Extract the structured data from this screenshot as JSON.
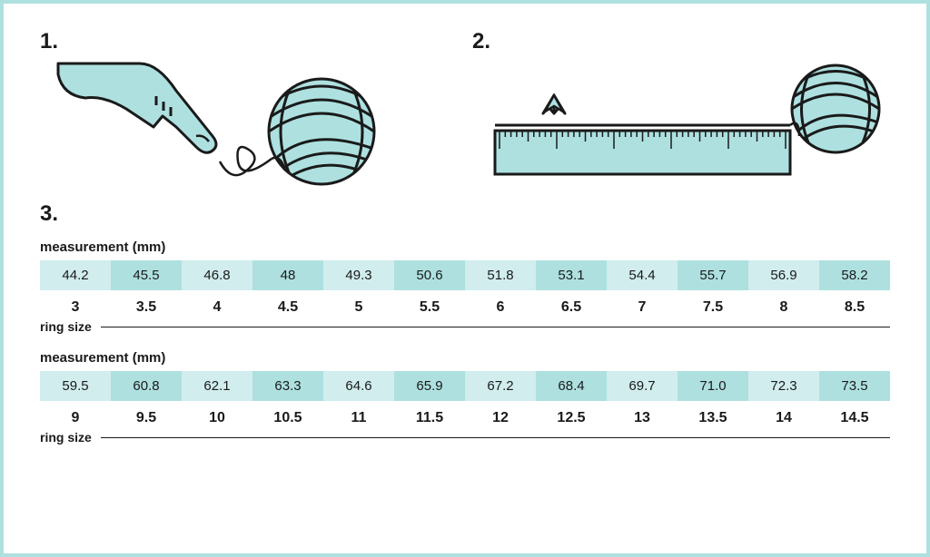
{
  "steps": {
    "s1": "1.",
    "s2": "2.",
    "s3": "3."
  },
  "labels": {
    "measurement": "measurement (mm)",
    "ringsize": "ring size"
  },
  "colors": {
    "border": "#aee0e0",
    "fill_light": "#d1edee",
    "fill_dark": "#aee0e0",
    "stroke": "#1a1a1a",
    "bg": "#ffffff"
  },
  "table1": {
    "measurements": [
      "44.2",
      "45.5",
      "46.8",
      "48",
      "49.3",
      "50.6",
      "51.8",
      "53.1",
      "54.4",
      "55.7",
      "56.9",
      "58.2"
    ],
    "sizes": [
      "3",
      "3.5",
      "4",
      "4.5",
      "5",
      "5.5",
      "6",
      "6.5",
      "7",
      "7.5",
      "8",
      "8.5"
    ]
  },
  "table2": {
    "measurements": [
      "59.5",
      "60.8",
      "62.1",
      "63.3",
      "64.6",
      "65.9",
      "67.2",
      "68.4",
      "69.7",
      "71.0",
      "72.3",
      "73.5"
    ],
    "sizes": [
      "9",
      "9.5",
      "10",
      "10.5",
      "11",
      "11.5",
      "12",
      "12.5",
      "13",
      "13.5",
      "14",
      "14.5"
    ]
  },
  "chart_meta": {
    "type": "infographic",
    "cell_colors_alternating": [
      "#d1edee",
      "#aee0e0"
    ],
    "text_color": "#1a1a1a",
    "measurement_fontsize": 15,
    "size_fontsize": 16,
    "size_fontweight": "bold",
    "label_fontsize": 15,
    "columns": 12
  }
}
